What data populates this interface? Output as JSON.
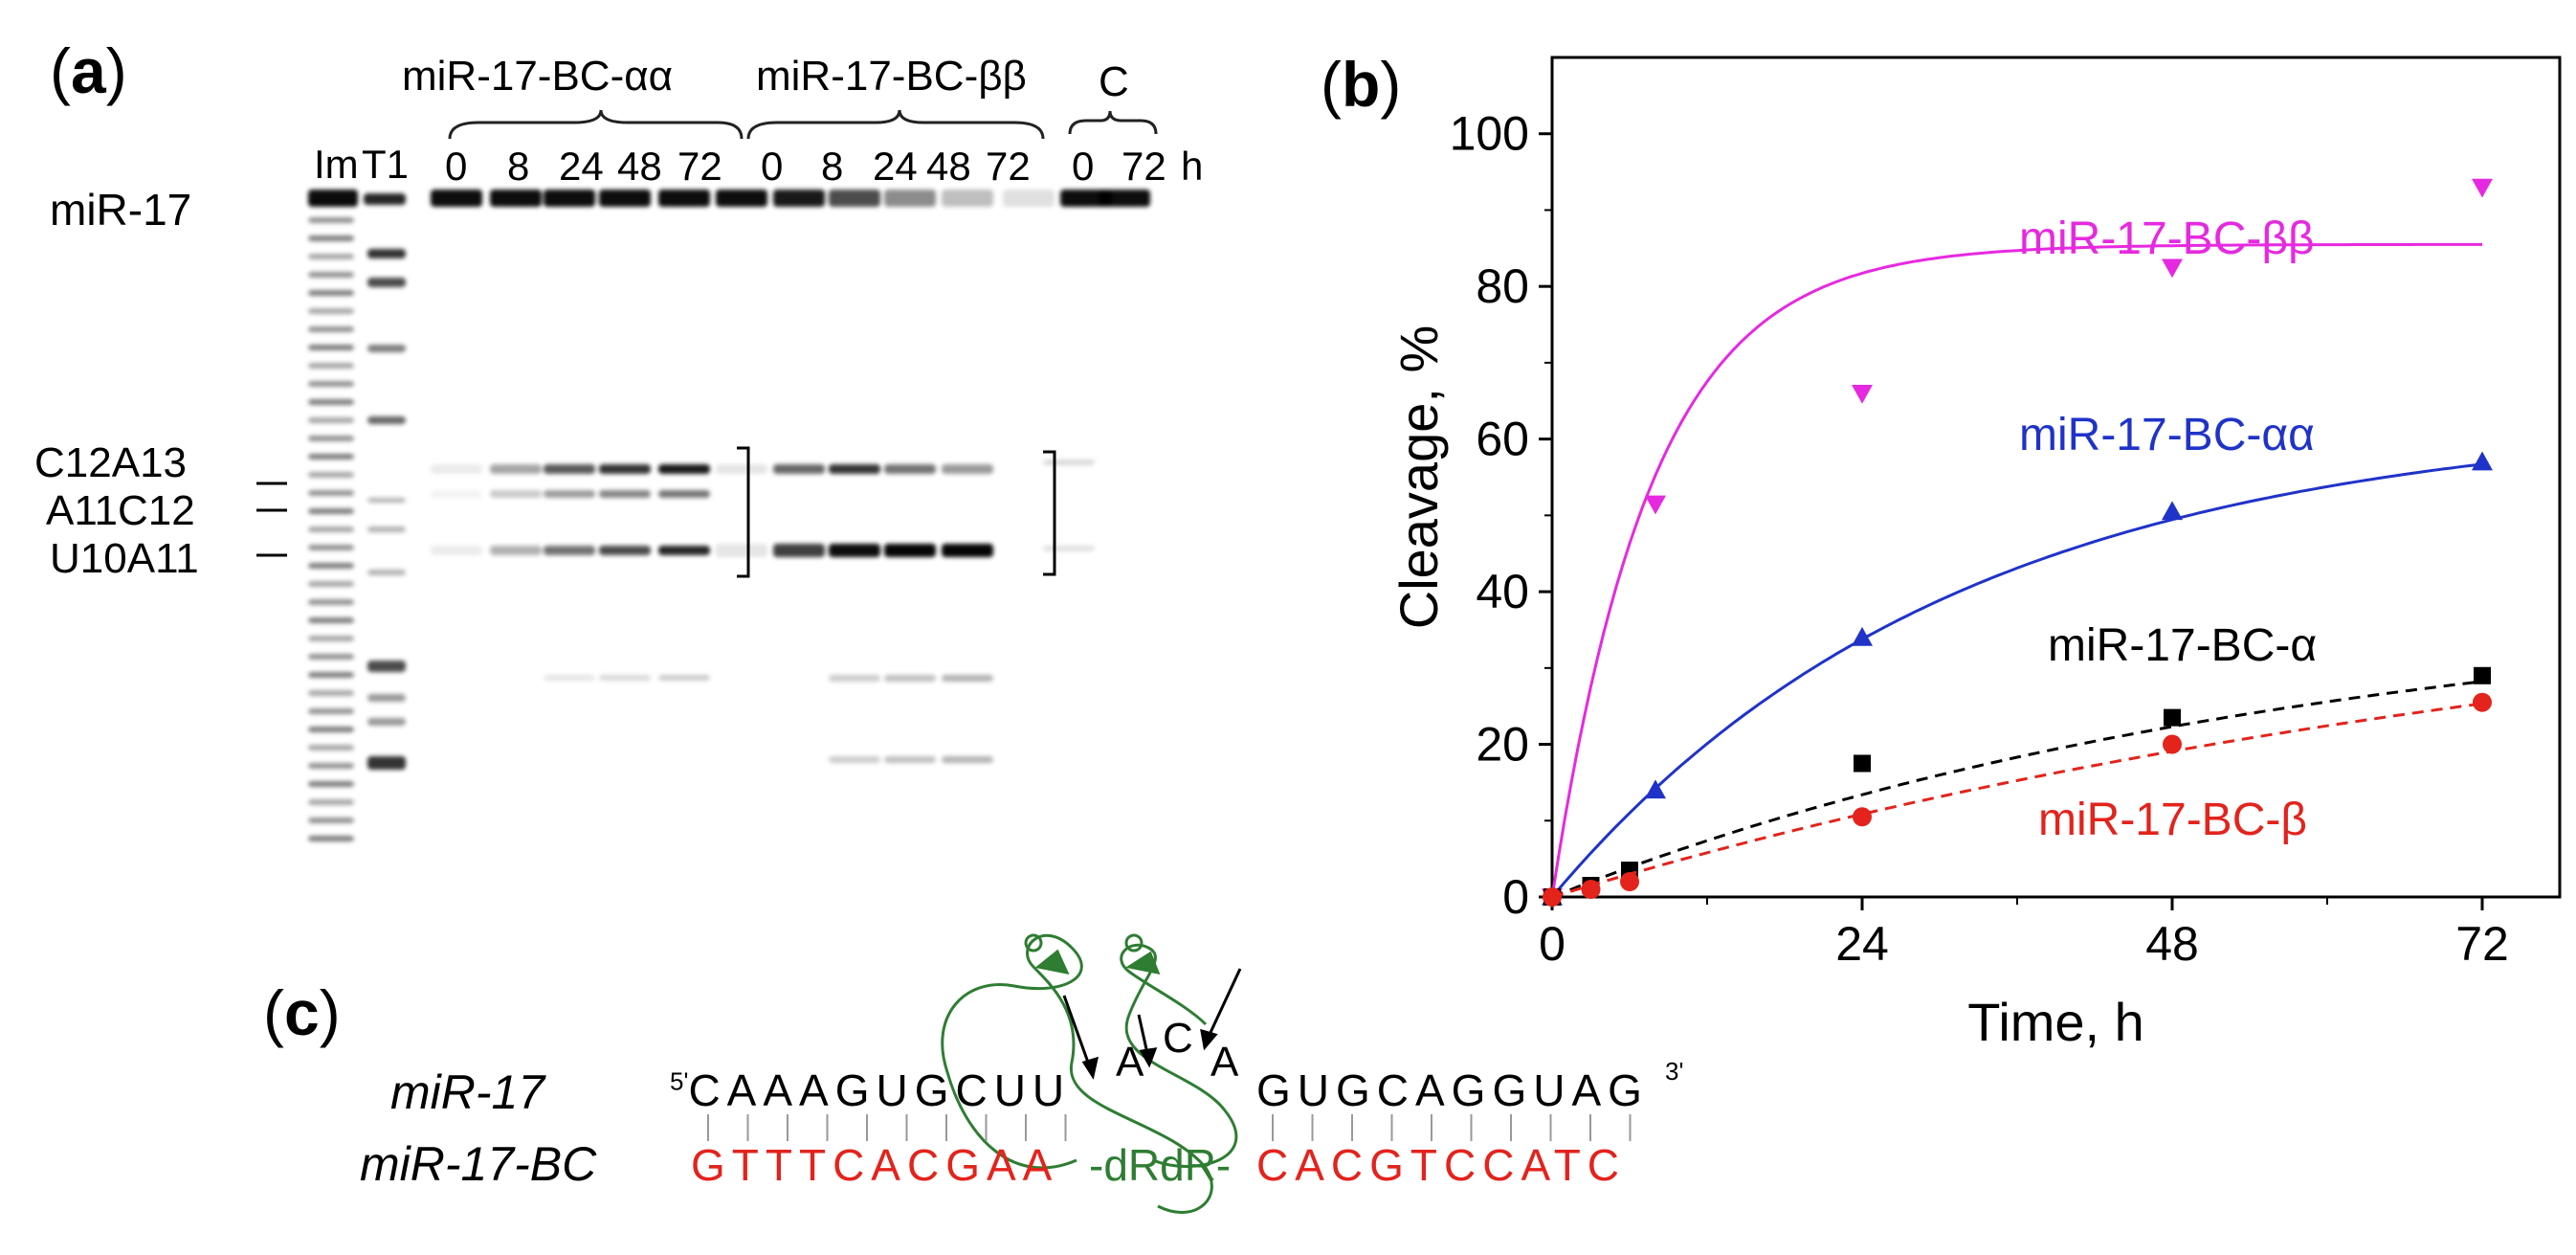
{
  "panel_a": {
    "label_open": "(",
    "label_letter": "a",
    "label_close": ")",
    "group_labels": [
      "miR-17-BC-αα",
      "miR-17-BC-ββ",
      "C"
    ],
    "lane_labels": [
      "Im",
      "T1",
      "0",
      "8",
      "24",
      "48",
      "72",
      "0",
      "8",
      "24",
      "48",
      "72",
      "0",
      "72",
      "h"
    ],
    "substrate_label": "miR-17",
    "cleavage_sites": [
      "C12A13",
      "A11C12",
      "U10A11"
    ]
  },
  "panel_b": {
    "label_open": "(",
    "label_letter": "b",
    "label_close": ")"
  },
  "panel_c": {
    "label_open": "(",
    "label_letter": "c",
    "label_close": ")",
    "top_strand_name": "miR-17",
    "bottom_strand_name": "miR-17-BC",
    "five_prime": "5'",
    "three_prime": "3'",
    "top_left_seq": "CAAAGUGCUU",
    "bulge": [
      "A",
      "C",
      "A"
    ],
    "top_right_seq": "GUGCAGGUAG",
    "bottom_left_seq": "GTTTCACGAA",
    "bottom_mid_seq": "-dRdR-",
    "bottom_right_seq": "CACGTCCATC",
    "colors": {
      "top": "#000000",
      "bottom": "#e3231c",
      "linker": "#2e7d32"
    }
  },
  "chart_data": {
    "type": "scatter",
    "title": "",
    "xlabel": "Time, h",
    "ylabel": "Cleavage, %",
    "xlim": [
      0,
      78
    ],
    "ylim": [
      0,
      110
    ],
    "xticks": [
      0,
      24,
      48,
      72
    ],
    "yticks": [
      0,
      20,
      40,
      60,
      80,
      100
    ],
    "series": [
      {
        "name": "miR-17-BC-ββ",
        "color": "#e629e0",
        "marker": "triangle-down",
        "fit": "solid",
        "x": [
          0,
          8,
          24,
          48,
          72
        ],
        "y": [
          0,
          51.5,
          66,
          82.5,
          93
        ],
        "fit_curve": {
          "plateau": 85.5,
          "k": 0.13
        }
      },
      {
        "name": "miR-17-BC-αα",
        "color": "#1f33c9",
        "marker": "triangle-up",
        "fit": "solid",
        "x": [
          0,
          8,
          24,
          48,
          72
        ],
        "y": [
          0,
          14,
          34,
          50.5,
          57
        ],
        "fit_curve": {
          "plateau": 63,
          "k": 0.032
        }
      },
      {
        "name": "miR-17-BC-α",
        "color": "#000000",
        "marker": "square",
        "fit": "dashed",
        "x": [
          0,
          3,
          6,
          24,
          48,
          72
        ],
        "y": [
          0,
          1.5,
          3.5,
          17.5,
          23.5,
          29
        ],
        "fit_curve": {
          "plateau": 40,
          "k": 0.017
        }
      },
      {
        "name": "miR-17-BC-β",
        "color": "#e3231c",
        "marker": "circle",
        "fit": "dashed",
        "x": [
          0,
          3,
          6,
          24,
          48,
          72
        ],
        "y": [
          0,
          1,
          2,
          10.5,
          20,
          25.5
        ],
        "fit_curve": {
          "plateau": 45,
          "k": 0.0115
        }
      }
    ]
  }
}
